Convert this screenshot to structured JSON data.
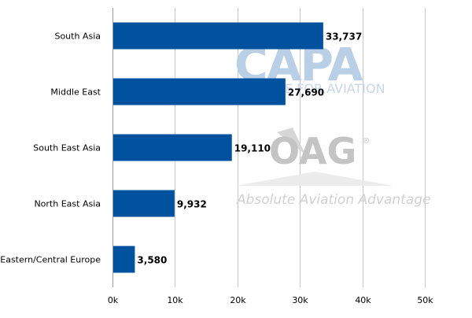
{
  "chart_data": {
    "type": "bar",
    "orientation": "horizontal",
    "categories": [
      "South Asia",
      "Middle East",
      "South East Asia",
      "North East Asia",
      "Eastern/Central Europe"
    ],
    "values": [
      33737,
      27690,
      19110,
      9932,
      3580
    ],
    "value_labels": [
      "33,737",
      "27,690",
      "19,110",
      "9,932",
      "3,580"
    ],
    "x_ticks": [
      0,
      10000,
      20000,
      30000,
      40000,
      50000
    ],
    "x_tick_labels": [
      "0k",
      "10k",
      "20k",
      "30k",
      "40k",
      "50k"
    ],
    "xlim": [
      0,
      50000
    ],
    "grid": "vertical",
    "bar_color": "#00519e"
  },
  "watermark": {
    "capa_text": "CAPA",
    "capa_subtext": "E FOR AVIATION",
    "oag_text": "OAG",
    "oag_registered": "®",
    "tagline": "Absolute Aviation Advantage"
  }
}
